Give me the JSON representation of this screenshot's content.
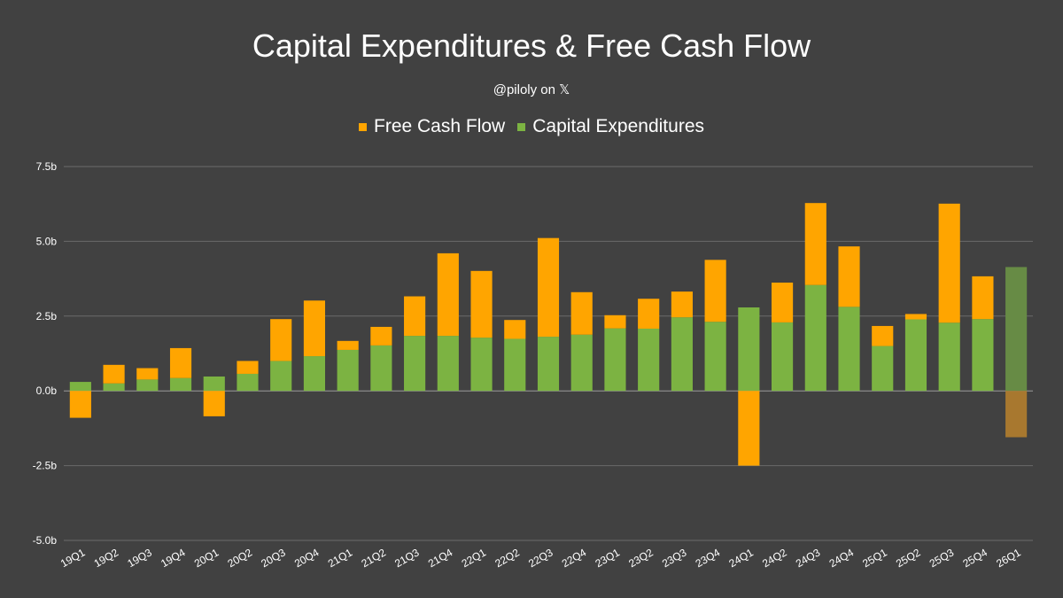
{
  "chart_data": {
    "type": "bar",
    "stacked": true,
    "title": "Capital Expenditures & Free Cash Flow",
    "subtitle": "@piloly on 𝕏",
    "xlabel": "",
    "ylabel": "",
    "ylim": [
      -5.0,
      7.5
    ],
    "yticks": [
      -5.0,
      -2.5,
      0.0,
      2.5,
      5.0,
      7.5
    ],
    "ytick_labels": [
      "-5.0b",
      "-2.5b",
      "0.0b",
      "2.5b",
      "5.0b",
      "7.5b"
    ],
    "grid": true,
    "legend_position": "top-center",
    "categories": [
      "19Q1",
      "19Q2",
      "19Q3",
      "19Q4",
      "20Q1",
      "20Q2",
      "20Q3",
      "20Q4",
      "21Q1",
      "21Q2",
      "21Q3",
      "21Q4",
      "22Q1",
      "22Q2",
      "22Q3",
      "22Q4",
      "23Q1",
      "23Q2",
      "23Q3",
      "23Q4",
      "24Q1",
      "24Q2",
      "24Q3",
      "24Q4",
      "25Q1",
      "25Q2",
      "25Q3",
      "25Q4",
      "26Q1"
    ],
    "series": [
      {
        "name": "Free Cash Flow",
        "color": "#FFA500",
        "values": [
          -0.9,
          0.62,
          0.38,
          1.0,
          -0.85,
          0.43,
          1.4,
          1.86,
          0.3,
          0.62,
          1.32,
          2.76,
          2.23,
          0.63,
          3.3,
          1.42,
          0.44,
          1.0,
          0.86,
          2.07,
          -2.5,
          1.33,
          2.74,
          2.02,
          0.67,
          0.18,
          3.98,
          1.43,
          -1.55
        ]
      },
      {
        "name": "Capital Expenditures",
        "color": "#7CB342",
        "values": [
          0.3,
          0.25,
          0.38,
          0.43,
          0.48,
          0.57,
          1.0,
          1.16,
          1.37,
          1.52,
          1.84,
          1.84,
          1.78,
          1.74,
          1.81,
          1.88,
          2.09,
          2.08,
          2.46,
          2.31,
          2.79,
          2.29,
          3.54,
          2.81,
          1.5,
          2.39,
          2.28,
          2.4,
          4.14
        ]
      }
    ],
    "highlighted_category": "26Q1",
    "highlight_colors": {
      "Free Cash Flow": "#A8782F",
      "Capital Expenditures": "#678B45"
    }
  },
  "colors": {
    "background": "#414141",
    "grid": "#6A6A6A",
    "zero_line": "#9A9A9A",
    "text": "#FFFFFF"
  }
}
